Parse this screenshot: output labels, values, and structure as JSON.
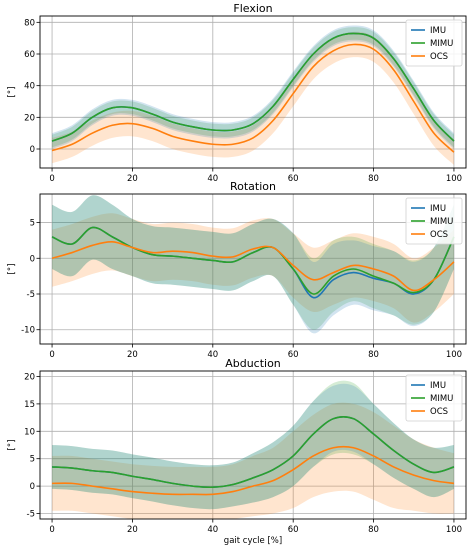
{
  "colors": {
    "IMU": "#1f77b4",
    "MIMU": "#2ca02c",
    "OCS": "#ff7f0e"
  },
  "chart_data": [
    {
      "type": "line",
      "title": "Flexion",
      "ylabel": "[°]",
      "xlabel": "",
      "xlim": [
        -3,
        103
      ],
      "ylim": [
        -12,
        84
      ],
      "xticks": [
        0,
        20,
        40,
        60,
        80,
        100
      ],
      "yticks": [
        0,
        20,
        40,
        60,
        80
      ],
      "grid": true,
      "legend": "top-right",
      "x": [
        0,
        5,
        10,
        15,
        20,
        25,
        30,
        35,
        40,
        45,
        50,
        55,
        60,
        65,
        70,
        75,
        80,
        85,
        90,
        95,
        100
      ],
      "series": [
        {
          "name": "IMU",
          "values": [
            5,
            10,
            20,
            26,
            26,
            22,
            17,
            14,
            12,
            12,
            16,
            27,
            44,
            60,
            70,
            73,
            70,
            57,
            38,
            18,
            5
          ],
          "band": [
            5,
            5,
            5,
            5,
            5,
            5,
            5,
            5,
            5,
            5,
            5,
            5,
            5,
            5,
            5,
            5,
            5,
            5,
            5,
            5,
            5
          ]
        },
        {
          "name": "MIMU",
          "values": [
            5,
            10,
            20,
            26,
            26,
            22,
            17,
            14,
            12,
            12,
            16,
            27,
            44,
            60,
            70,
            73,
            70,
            57,
            38,
            18,
            5
          ],
          "band": [
            4,
            4,
            4,
            4,
            4,
            4,
            4,
            4,
            4,
            4,
            4,
            4,
            4,
            4,
            4,
            4,
            4,
            4,
            4,
            4,
            4
          ]
        },
        {
          "name": "OCS",
          "values": [
            -1,
            3,
            10,
            15,
            16,
            13,
            8,
            5,
            3,
            3,
            7,
            18,
            35,
            52,
            62,
            66,
            63,
            50,
            30,
            10,
            -2
          ],
          "band": [
            8,
            8,
            8,
            8,
            8,
            8,
            8,
            8,
            8,
            8,
            8,
            8,
            8,
            8,
            8,
            8,
            8,
            8,
            8,
            8,
            8
          ]
        }
      ]
    },
    {
      "type": "line",
      "title": "Rotation",
      "ylabel": "[°]",
      "xlabel": "",
      "xlim": [
        -3,
        103
      ],
      "ylim": [
        -12,
        9
      ],
      "xticks": [
        0,
        20,
        40,
        60,
        80,
        100
      ],
      "yticks": [
        -10,
        -5,
        0,
        5
      ],
      "grid": true,
      "legend": "top-right",
      "x": [
        0,
        5,
        10,
        15,
        20,
        25,
        30,
        35,
        40,
        45,
        50,
        55,
        60,
        65,
        70,
        75,
        80,
        85,
        90,
        95,
        100
      ],
      "series": [
        {
          "name": "IMU",
          "values": [
            3,
            2,
            4.3,
            3,
            1.5,
            0.5,
            0.3,
            0,
            -0.3,
            -0.5,
            0.8,
            1.5,
            -1.5,
            -5.5,
            -3,
            -2,
            -2.8,
            -3.5,
            -5,
            -3,
            3
          ],
          "band": [
            4.5,
            4.5,
            4.5,
            4.5,
            4,
            4,
            4,
            4,
            4,
            4,
            4,
            4,
            5,
            5,
            5,
            4.5,
            4.5,
            4.5,
            4.5,
            4.5,
            4.5
          ]
        },
        {
          "name": "MIMU",
          "values": [
            3,
            2,
            4.3,
            3,
            1.5,
            0.5,
            0.3,
            0,
            -0.3,
            -0.5,
            0.8,
            1.5,
            -1.5,
            -5,
            -2.5,
            -1.5,
            -2.5,
            -3.5,
            -4.8,
            -3,
            3
          ],
          "band": [
            4.5,
            4.5,
            4.5,
            4.5,
            4,
            4,
            4,
            4,
            4,
            4,
            4,
            4,
            5,
            5,
            5,
            4.5,
            4.5,
            4.5,
            4.5,
            4.5,
            4.5
          ]
        },
        {
          "name": "OCS",
          "values": [
            0,
            0.8,
            1.8,
            2.3,
            1.5,
            0.8,
            1,
            0.8,
            0.3,
            0.2,
            1.3,
            1.5,
            -1,
            -3,
            -2,
            -1,
            -1.5,
            -2.5,
            -4.5,
            -3,
            -0.5
          ],
          "band": [
            4,
            4,
            4,
            4,
            4,
            4,
            4,
            4,
            4,
            4,
            4,
            4,
            4.5,
            4.5,
            4.5,
            4.5,
            4.5,
            4.5,
            4.5,
            4.5,
            4.5
          ]
        }
      ]
    },
    {
      "type": "line",
      "title": "Abduction",
      "ylabel": "[°]",
      "xlabel": "gait cycle [%]",
      "xlim": [
        -3,
        103
      ],
      "ylim": [
        -6,
        21
      ],
      "xticks": [
        0,
        20,
        40,
        60,
        80,
        100
      ],
      "yticks": [
        -5,
        0,
        5,
        10,
        15,
        20
      ],
      "grid": true,
      "legend": "top-right",
      "x": [
        0,
        5,
        10,
        15,
        20,
        25,
        30,
        35,
        40,
        45,
        50,
        55,
        60,
        65,
        70,
        75,
        80,
        85,
        90,
        95,
        100
      ],
      "series": [
        {
          "name": "IMU",
          "values": [
            3.5,
            3.3,
            2.8,
            2.5,
            1.8,
            1.2,
            0.5,
            0,
            -0.2,
            0.3,
            1.5,
            3,
            5.5,
            9.5,
            12.3,
            12.3,
            9.5,
            6.5,
            4,
            2.5,
            3.5
          ],
          "band": [
            4,
            4,
            4,
            4,
            4,
            4,
            4,
            4,
            4,
            4,
            4.5,
            5,
            5.5,
            6,
            6,
            6,
            5.5,
            5,
            4.5,
            4.5,
            4
          ]
        },
        {
          "name": "MIMU",
          "values": [
            3.5,
            3.3,
            2.8,
            2.5,
            1.8,
            1.2,
            0.5,
            0,
            -0.2,
            0.3,
            1.5,
            3,
            5.5,
            9.5,
            12.3,
            12.3,
            9.5,
            6.5,
            4,
            2.5,
            3.5
          ],
          "band": [
            4,
            4,
            4,
            4,
            4,
            4,
            4,
            4,
            4,
            4,
            4.5,
            5,
            5.5,
            6,
            6.5,
            6.5,
            5.5,
            5,
            4.5,
            4.5,
            4
          ]
        },
        {
          "name": "OCS",
          "values": [
            0.5,
            0.5,
            0,
            -0.5,
            -1,
            -1.3,
            -1.5,
            -1.5,
            -1.5,
            -1,
            0,
            1,
            3,
            5.5,
            7,
            7,
            5.5,
            3.5,
            2,
            1,
            0.5
          ],
          "band": [
            5,
            5,
            5,
            5,
            5,
            5,
            5,
            5,
            5,
            5,
            5.5,
            6,
            7,
            7.5,
            8,
            8,
            8,
            7.5,
            6.5,
            6,
            5.5
          ]
        }
      ]
    }
  ]
}
